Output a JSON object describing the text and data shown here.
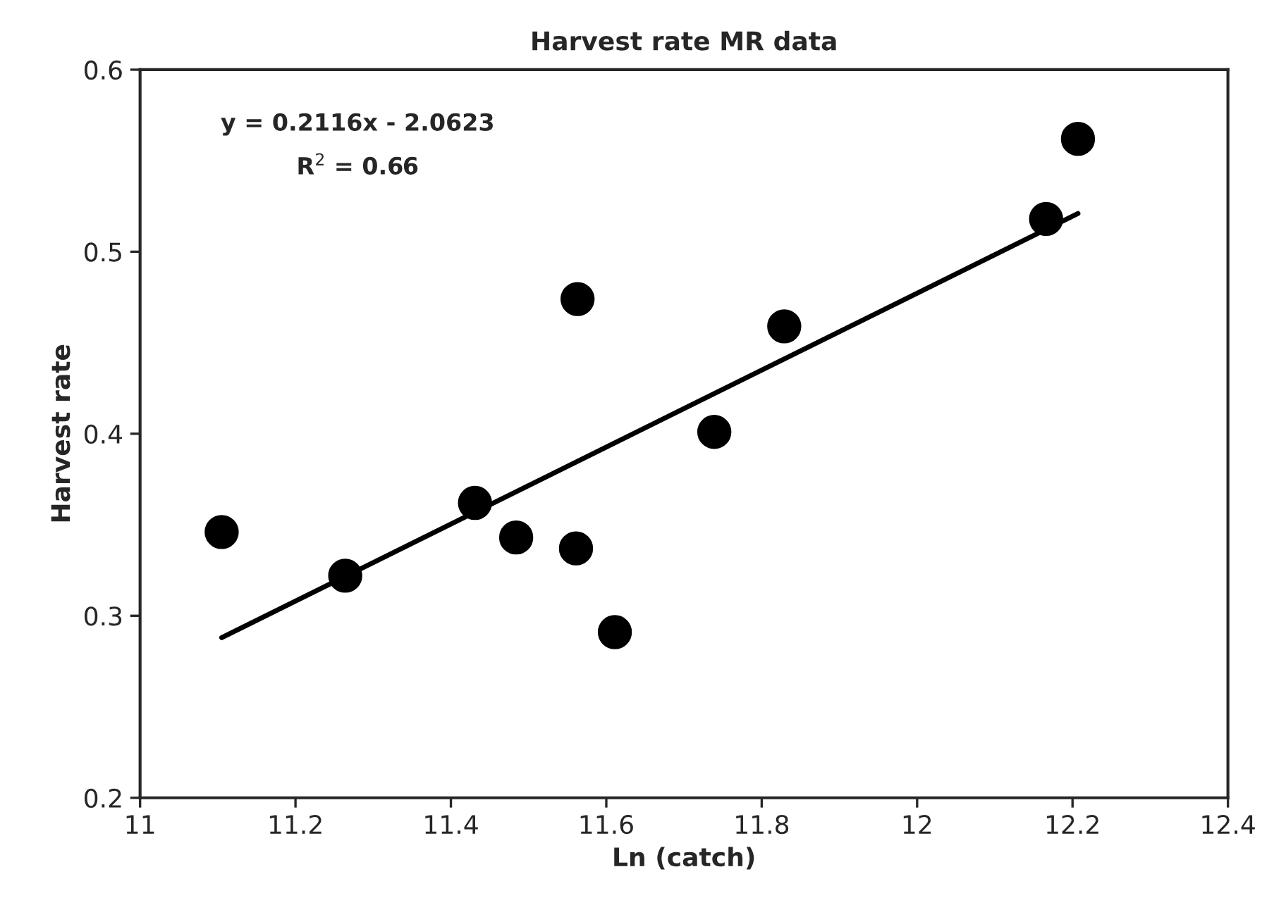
{
  "chart_data": {
    "type": "scatter",
    "title": "Harvest rate MR data",
    "xlabel": "Ln (catch)",
    "ylabel": "Harvest rate",
    "series": [
      {
        "color": "#000000",
        "marker": "circle",
        "x": [
          11.105,
          11.264,
          11.431,
          11.484,
          11.563,
          11.561,
          11.611,
          11.739,
          11.829,
          12.166,
          12.207
        ],
        "values": [
          0.346,
          0.322,
          0.362,
          0.343,
          0.474,
          0.337,
          0.291,
          0.401,
          0.459,
          0.518,
          0.562
        ]
      },
      {
        "type": "line",
        "color": "#000000",
        "marker": "none",
        "line_style": "solid",
        "x": [
          11.105,
          12.207
        ],
        "values": [
          0.288,
          0.521
        ]
      }
    ],
    "annotations": [
      "y = 0.2116x - 2.0623",
      "R$^{2}$ = 0.66"
    ],
    "xlim": [
      11,
      12.4
    ],
    "xticks": [
      11,
      11.2,
      11.4,
      11.6,
      11.8,
      12,
      12.2,
      12.4
    ],
    "ylim": [
      0.2,
      0.6
    ],
    "yticks": [
      0.2,
      0.3,
      0.4,
      0.5,
      0.6
    ],
    "grid": false,
    "legend": false
  }
}
